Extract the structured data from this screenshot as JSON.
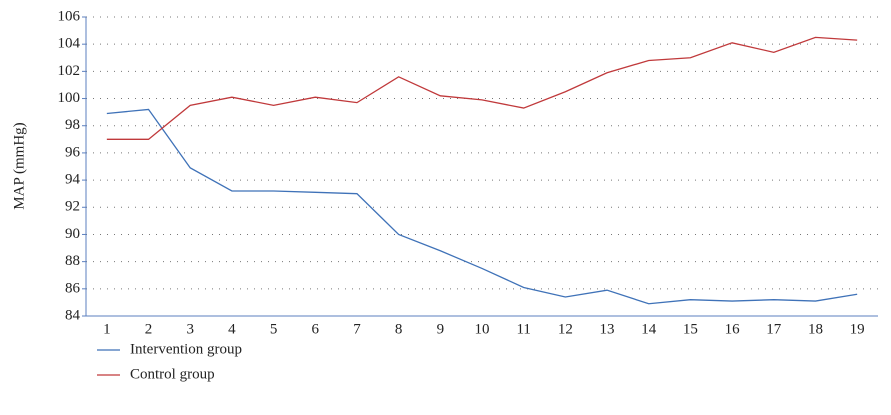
{
  "chart_data": {
    "type": "line",
    "y_label": "MAP (mmHg)",
    "categories": [
      "1",
      "2",
      "3",
      "4",
      "5",
      "6",
      "7",
      "8",
      "9",
      "10",
      "11",
      "12",
      "13",
      "14",
      "15",
      "16",
      "17",
      "18",
      "19"
    ],
    "series": [
      {
        "name": "Intervention group",
        "color": "#3f72b8",
        "values": [
          98.9,
          99.2,
          94.9,
          93.2,
          93.2,
          93.1,
          93.0,
          90.0,
          88.8,
          87.5,
          86.1,
          85.4,
          85.9,
          84.9,
          85.2,
          85.1,
          85.2,
          85.1,
          85.6
        ]
      },
      {
        "name": "Control group",
        "color": "#c0393b",
        "values": [
          97.0,
          97.0,
          99.5,
          100.1,
          99.5,
          100.1,
          99.7,
          101.6,
          100.2,
          99.9,
          99.3,
          100.5,
          101.9,
          102.8,
          103.0,
          104.1,
          103.4,
          104.5,
          104.3
        ]
      }
    ],
    "ylim": [
      84,
      106
    ],
    "yticks": [
      84,
      86,
      88,
      90,
      92,
      94,
      96,
      98,
      100,
      102,
      104,
      106
    ],
    "grid": true,
    "legend": "bottom-left"
  }
}
